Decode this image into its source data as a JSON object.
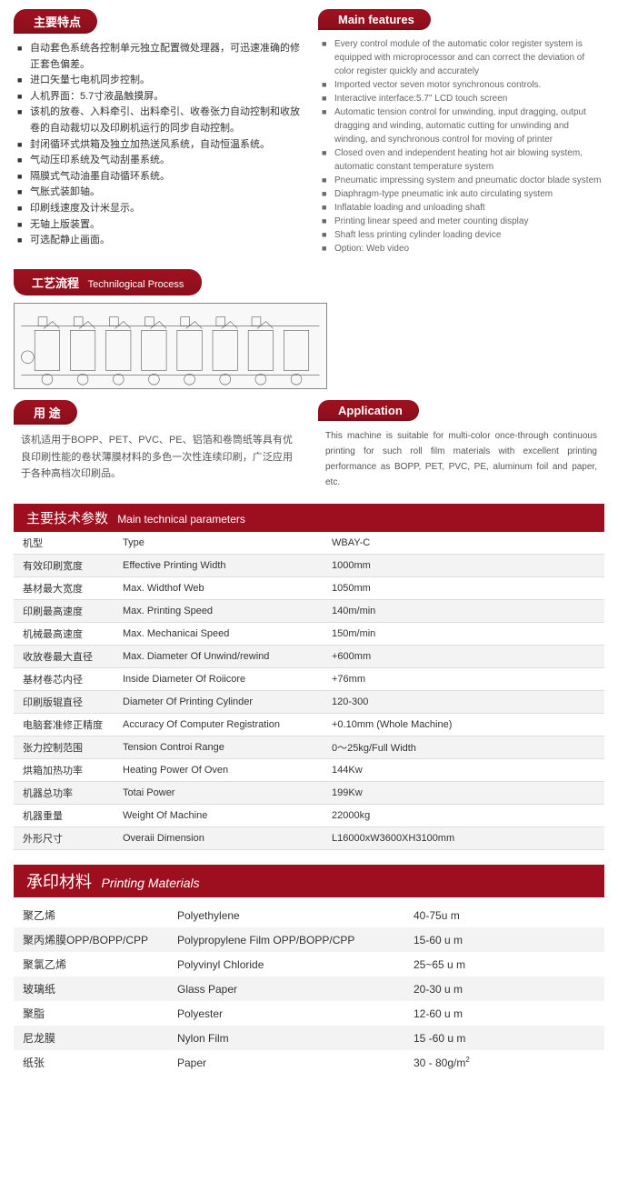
{
  "headers": {
    "features_cn": "主要特点",
    "features_en": "Main features",
    "process_cn": "工艺流程",
    "process_en": "Technilogical Process",
    "usage_cn": "用 途",
    "application_en": "Application",
    "params_cn": "主要技术参数",
    "params_en": "Main technical parameters",
    "materials_cn": "承印材料",
    "materials_en": "Printing Materials"
  },
  "features_cn_list": [
    "自动套色系统各控制单元独立配置微处理器，可迅速准确的修正套色偏差。",
    "进口矢量七电机同步控制。",
    "人机界面：5.7寸液晶触摸屏。",
    "该机的放卷、入料牵引、出料牵引、收卷张力自动控制和收放卷的自动裁切以及印刷机运行的同步自动控制。",
    "封闭循环式烘箱及独立加热送风系统，自动恒温系统。",
    "气动压印系统及气动刮墨系统。",
    "隔膜式气动油墨自动循环系统。",
    "气胀式装卸轴。",
    "印刷线速度及计米显示。",
    "无轴上版装置。",
    "可选配静止画面。"
  ],
  "features_en_list": [
    "Every control module of the automatic color register system is equipped with microprocessor and can correct the deviation of color register quickly and accurately",
    "Imported vector seven motor synchronous controls.",
    "Interactive interface:5.7\" LCD touch screen",
    "Automatic tension control for unwinding, input dragging, output dragging and winding, automatic cutting for unwinding and winding, and synchronous control for moving of printer",
    "Closed oven and independent heating hot air blowing system, automatic constant temperature system",
    "Pneumatic impressing system and pneumatic doctor blade system",
    "Diaphragm-type pneumatic ink auto circulating system",
    "Inflatable loading and unloading shaft",
    "Printing linear speed and meter counting display",
    "Shaft less printing cylinder loading device",
    "Option: Web video"
  ],
  "usage_text": "该机适用于BOPP、PET、PVC、PE、铝箔和卷筒纸等具有优良印刷性能的卷状薄膜材料的多色一次性连续印刷，广泛应用于各种高档次印刷品。",
  "application_text": "This machine is suitable for multi-color once-through continuous printing for such roll film materials with excellent printing performance as BOPP, PET, PVC, PE, aluminum foil and paper, etc.",
  "params": [
    {
      "cn": "机型",
      "en": "Type",
      "val": "WBAY-C"
    },
    {
      "cn": "有效印刷宽度",
      "en": "Effective Printing Width",
      "val": "1000mm"
    },
    {
      "cn": "基材最大宽度",
      "en": "Max. Widthof Web",
      "val": "1050mm"
    },
    {
      "cn": "印刷最高速度",
      "en": "Max. Printing Speed",
      "val": "140m/min"
    },
    {
      "cn": "机械最高速度",
      "en": "Max. Mechanicai Speed",
      "val": "150m/min"
    },
    {
      "cn": "收放卷最大直径",
      "en": "Max. Diameter Of Unwind/rewind",
      "val": "+600mm"
    },
    {
      "cn": "基材卷芯内径",
      "en": "Inside Diameter Of Roiicore",
      "val": "+76mm"
    },
    {
      "cn": "印刷版辊直径",
      "en": "Diameter Of Printing Cylinder",
      "val": "120-300"
    },
    {
      "cn": "电脑套准修正精度",
      "en": "Accuracy Of Computer Registration",
      "val": "+0.10mm (Whole Machine)"
    },
    {
      "cn": "张力控制范围",
      "en": "Tension Controi Range",
      "val": "0～25kg/Full Width"
    },
    {
      "cn": "烘箱加热功率",
      "en": "Heating Power Of Oven",
      "val": "144Kw"
    },
    {
      "cn": "机器总功率",
      "en": "Totai Power",
      "val": "199Kw"
    },
    {
      "cn": "机器重量",
      "en": "Weight Of Machine",
      "val": "22000kg"
    },
    {
      "cn": "外形尺寸",
      "en": "Overaii Dimension",
      "val": "L16000xW3600XH3100mm"
    }
  ],
  "materials": [
    {
      "cn": "聚乙烯",
      "en": "Polyethylene",
      "val": "40-75u m"
    },
    {
      "cn": "聚丙烯膜OPP/BOPP/CPP",
      "en": "Polypropylene Film OPP/BOPP/CPP",
      "val": "15-60 u m"
    },
    {
      "cn": "聚氯乙烯",
      "en": "Polyvinyl Chloride",
      "val": "25~65 u m"
    },
    {
      "cn": "玻璃纸",
      "en": "Glass Paper",
      "val": "20-30 u m"
    },
    {
      "cn": "聚脂",
      "en": "Polyester",
      "val": "12-60 u m"
    },
    {
      "cn": "尼龙膜",
      "en": "Nylon Film",
      "val": "15 -60 u m"
    },
    {
      "cn": "纸张",
      "en": "Paper",
      "val": "30 - 80g/m²"
    }
  ]
}
